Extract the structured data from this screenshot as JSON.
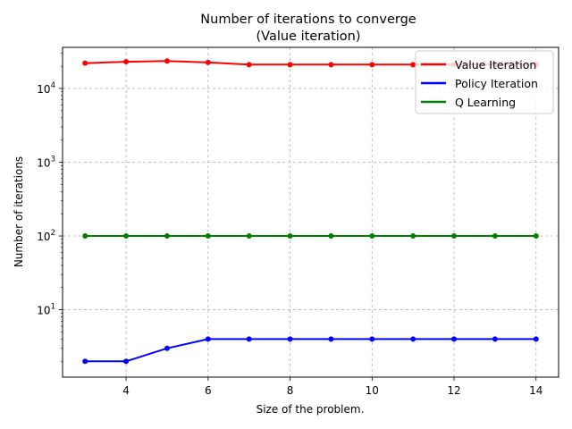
{
  "chart_data": {
    "type": "line",
    "title_line1": "Number of iterations to converge",
    "title_line2": "(Value iteration)",
    "xlabel": "Size of the problem.",
    "ylabel": "Number of iterations",
    "x": [
      3,
      4,
      5,
      6,
      7,
      8,
      9,
      10,
      11,
      12,
      13,
      14
    ],
    "xlim": [
      2.45,
      14.55
    ],
    "ylim": [
      1.22,
      36000
    ],
    "yscale": "log",
    "x_ticks": [
      4,
      6,
      8,
      10,
      12,
      14
    ],
    "y_ticks": [
      {
        "value": 10,
        "base": "10",
        "exp": "1"
      },
      {
        "value": 100,
        "base": "10",
        "exp": "2"
      },
      {
        "value": 1000,
        "base": "10",
        "exp": "3"
      },
      {
        "value": 10000,
        "base": "10",
        "exp": "4"
      }
    ],
    "grid": true,
    "legend_position": "top-right",
    "series": [
      {
        "name": "Value Iteration",
        "color": "#ff0000",
        "values": [
          22000,
          23000,
          23500,
          22500,
          21000,
          21000,
          21000,
          21000,
          21000,
          21000,
          21000,
          21000
        ]
      },
      {
        "name": "Policy Iteration",
        "color": "#0000ff",
        "values": [
          2,
          2,
          3,
          4,
          4,
          4,
          4,
          4,
          4,
          4,
          4,
          4
        ]
      },
      {
        "name": "Q Learning",
        "color": "#008000",
        "values": [
          100,
          100,
          100,
          100,
          100,
          100,
          100,
          100,
          100,
          100,
          100,
          100
        ]
      }
    ]
  }
}
